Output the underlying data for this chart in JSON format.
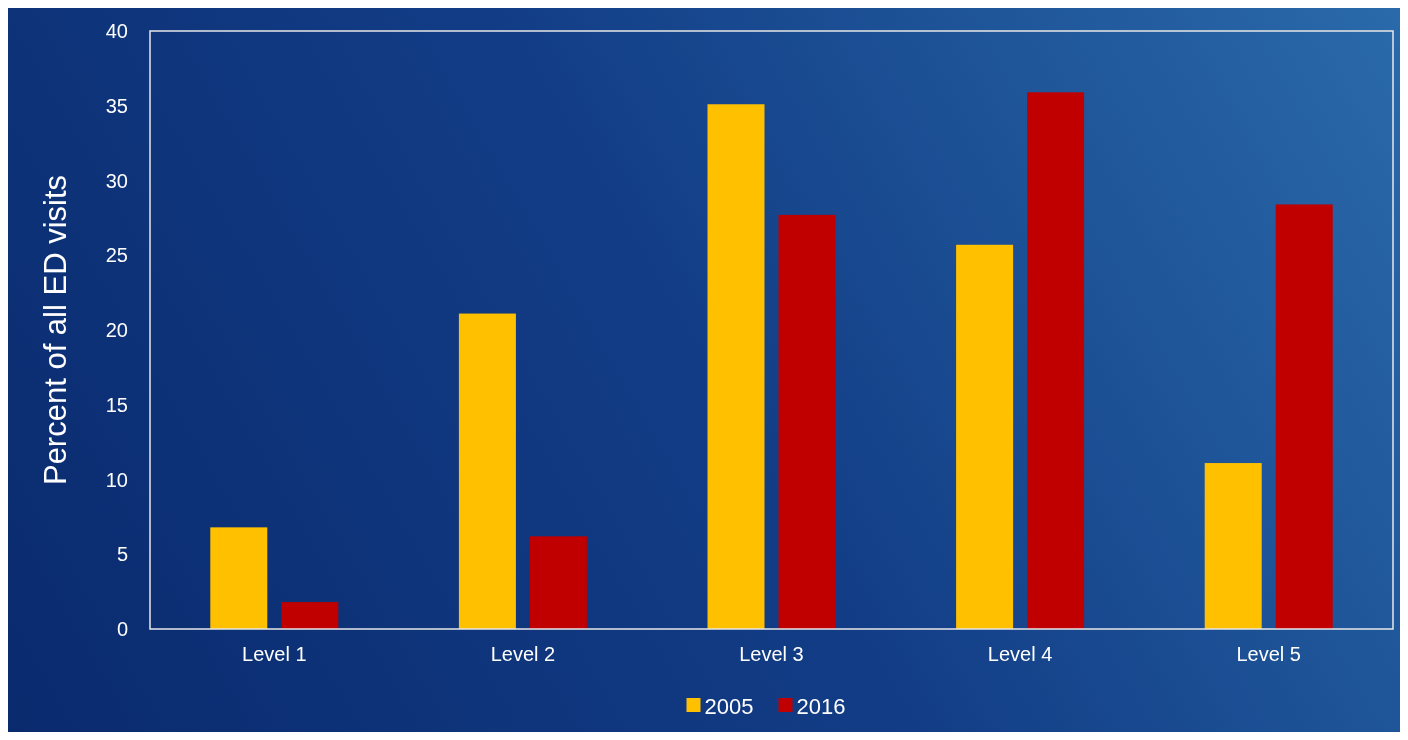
{
  "chart_data": {
    "type": "bar",
    "ylabel": "Percent of all ED visits",
    "categories": [
      "Level 1",
      "Level 2",
      "Level 3",
      "Level 4",
      "Level 5"
    ],
    "series": [
      {
        "name": "2005",
        "color": "#ffc000",
        "values": [
          6.8,
          21.1,
          35.1,
          25.7,
          11.1
        ]
      },
      {
        "name": "2016",
        "color": "#c00000",
        "values": [
          1.8,
          6.2,
          27.7,
          35.9,
          28.4
        ]
      }
    ],
    "ylim": [
      0,
      40
    ],
    "yticks": [
      0,
      5,
      10,
      15,
      20,
      25,
      30,
      35,
      40
    ],
    "grid": false,
    "legend": "bottom"
  }
}
